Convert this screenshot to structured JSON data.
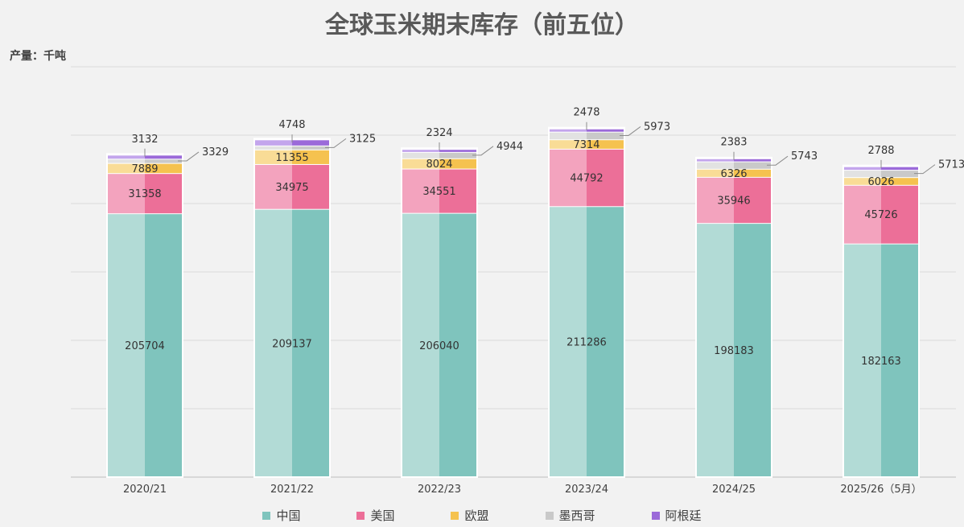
{
  "chart_data": {
    "type": "bar",
    "stacked": true,
    "title": "全球玉米期末库存（前五位）",
    "ylabel": "产量：千吨",
    "xlabel": "",
    "categories": [
      "2020/21",
      "2021/22",
      "2022/23",
      "2023/24",
      "2024/25",
      "2025/26（5月）"
    ],
    "ylim": [
      0,
      320000
    ],
    "grid": true,
    "legend_position": "bottom",
    "series": [
      {
        "name": "中国",
        "color": "#7fc4bd",
        "values": [
          205704,
          209137,
          206040,
          211286,
          198183,
          182163
        ]
      },
      {
        "name": "美国",
        "color": "#ec6f98",
        "values": [
          31358,
          34975,
          34551,
          44792,
          35946,
          45726
        ]
      },
      {
        "name": "欧盟",
        "color": "#f5c24f",
        "values": [
          7889,
          11355,
          8024,
          7314,
          6326,
          6026
        ]
      },
      {
        "name": "墨西哥",
        "color": "#c9c9c9",
        "values": [
          3329,
          3125,
          4944,
          5973,
          5743,
          5713
        ]
      },
      {
        "name": "阿根廷",
        "color": "#9b6ad9",
        "values": [
          3132,
          4748,
          2324,
          2478,
          2383,
          2788
        ]
      }
    ]
  }
}
